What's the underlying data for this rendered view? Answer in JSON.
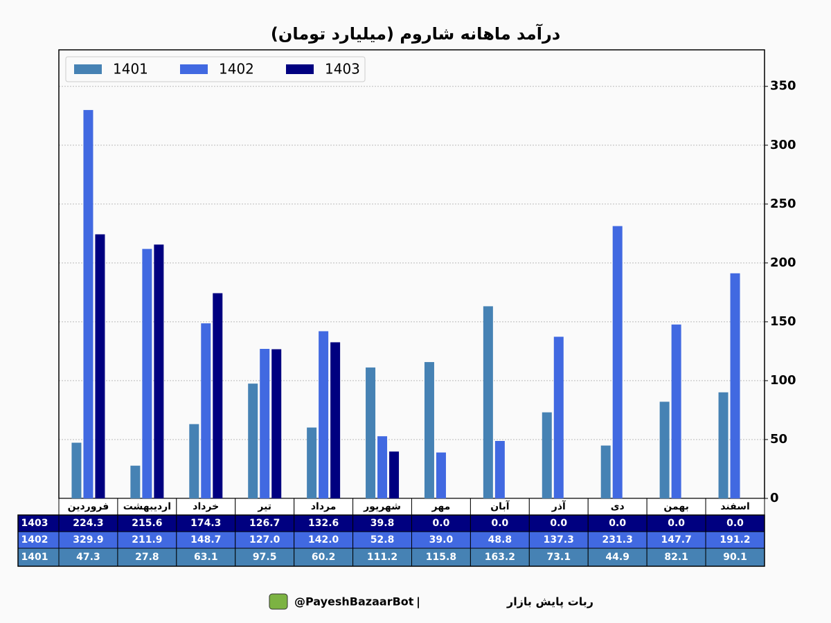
{
  "chart_data": {
    "type": "bar",
    "title": "درآمد ماهانه شاروم (میلیارد تومان)",
    "categories": [
      "فروردین",
      "اردیبهشت",
      "خرداد",
      "تیر",
      "مرداد",
      "شهریور",
      "مهر",
      "آبان",
      "آذر",
      "دی",
      "بهمن",
      "اسفند"
    ],
    "series": [
      {
        "name": "1401",
        "color": "#4682b4",
        "values": [
          47.3,
          27.8,
          63.1,
          97.5,
          60.2,
          111.2,
          115.8,
          163.2,
          73.1,
          44.9,
          82.1,
          90.1
        ],
        "value_labels": [
          "47.3",
          "27.8",
          "63.1",
          "97.5",
          "60.2",
          "111.2",
          "115.8",
          "163.2",
          "73.1",
          "44.9",
          "82.1",
          "90.1"
        ]
      },
      {
        "name": "1402",
        "color": "#4169e1",
        "values": [
          329.9,
          211.9,
          148.7,
          127.0,
          142.0,
          52.8,
          39.0,
          48.8,
          137.3,
          231.3,
          147.7,
          191.2
        ],
        "value_labels": [
          "329.9",
          "211.9",
          "148.7",
          "127.0",
          "142.0",
          "52.8",
          "39.0",
          "48.8",
          "137.3",
          "231.3",
          "147.7",
          "191.2"
        ]
      },
      {
        "name": "1403",
        "color": "#000080",
        "values": [
          224.3,
          215.6,
          174.3,
          126.7,
          132.6,
          39.8,
          0,
          0,
          0,
          0,
          0,
          0
        ],
        "value_labels": [
          "224.3",
          "215.6",
          "174.3",
          "126.7",
          "132.6",
          "39.8",
          "0.0",
          "0.0",
          "0.0",
          "0.0",
          "0.0",
          "0.0"
        ]
      }
    ],
    "ylim": [
      0,
      381
    ],
    "yticks": [
      0,
      50,
      100,
      150,
      200,
      250,
      300,
      350
    ],
    "grid": true,
    "legend": "upper left"
  },
  "footer": {
    "handle": "@PayeshBazaarBot",
    "separator": "|",
    "name": "ربات پایش بازار"
  }
}
